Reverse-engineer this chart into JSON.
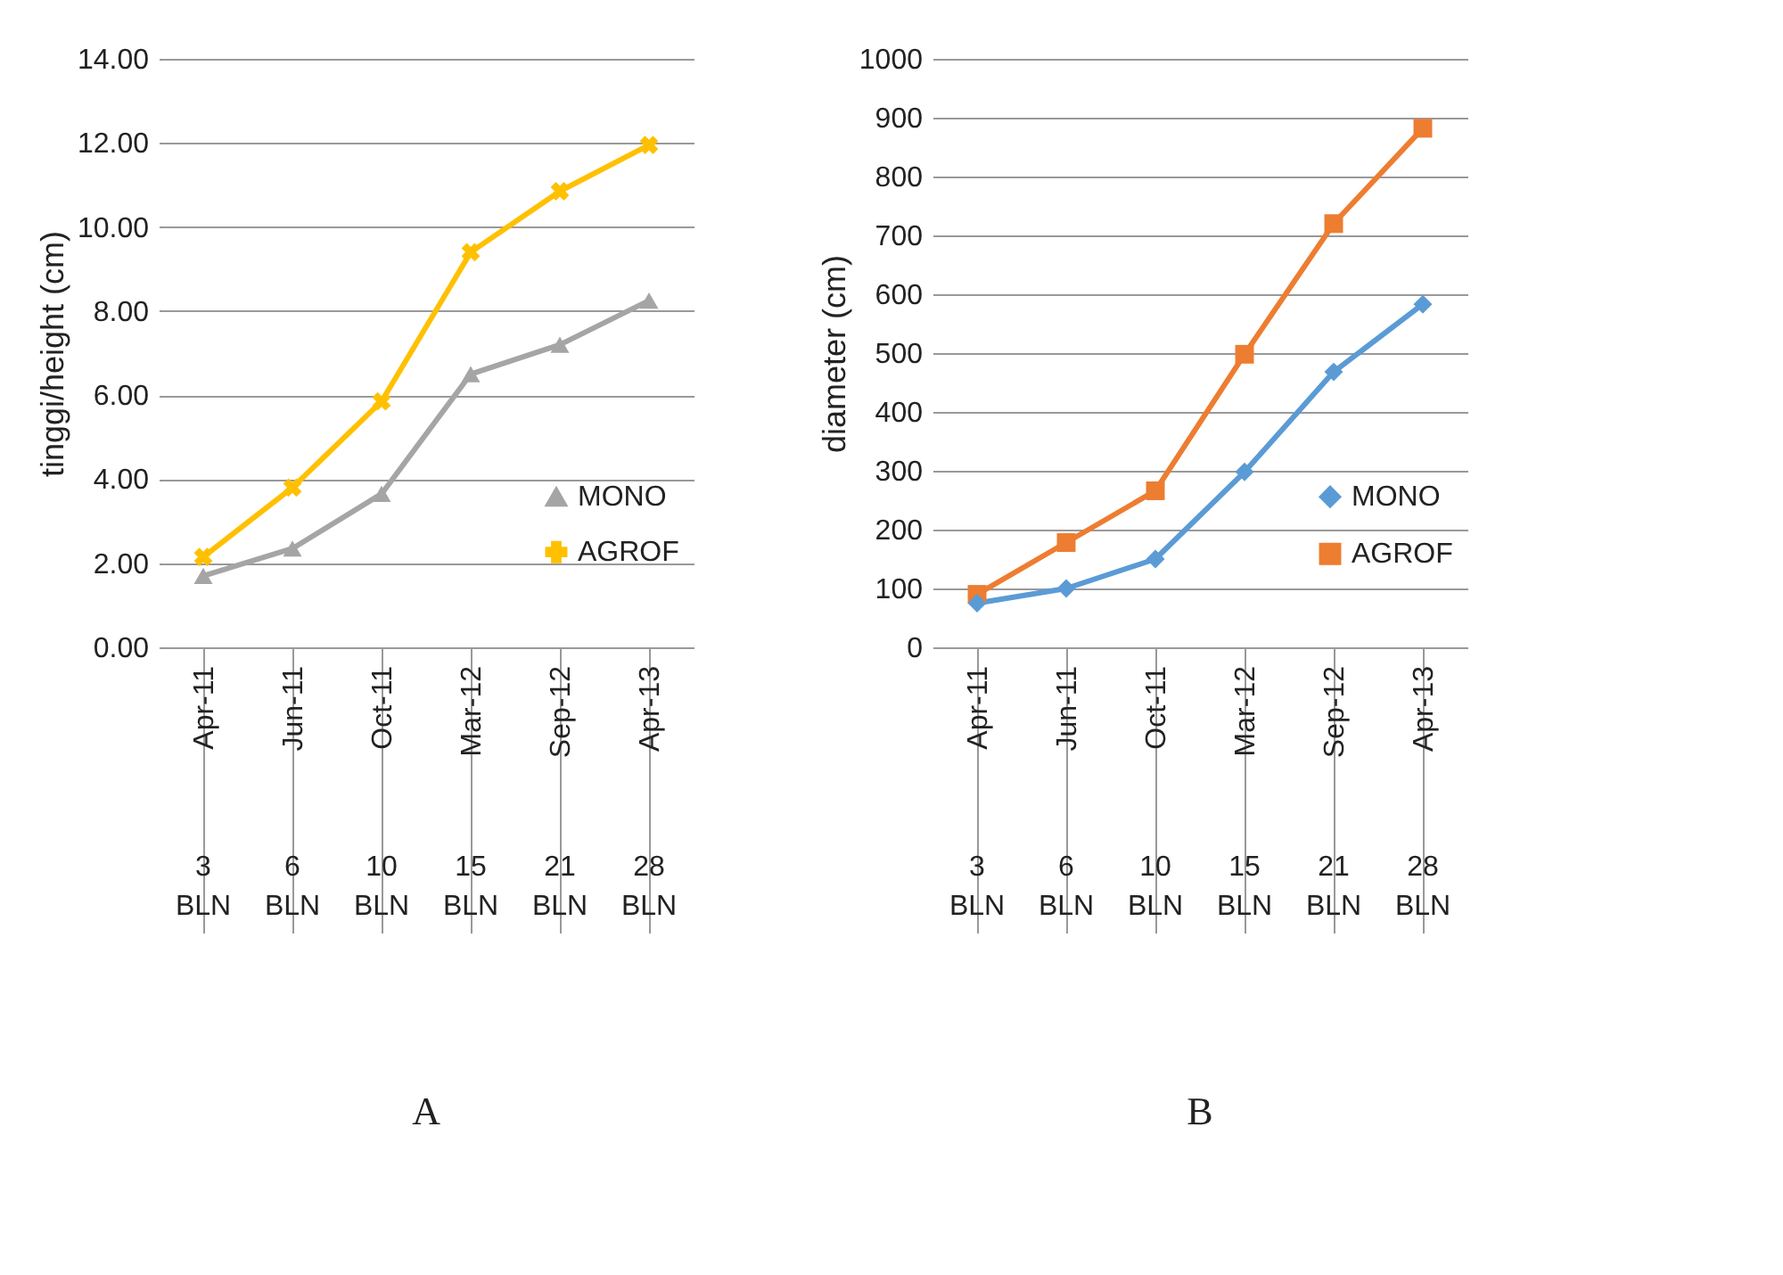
{
  "chart_data": [
    {
      "type": "line",
      "title": "A",
      "ylabel": "tinggi/height (cm)",
      "categories": [
        "Apr-11",
        "Jun-11",
        "Oct-11",
        "Mar-12",
        "Sep-12",
        "Apr-13"
      ],
      "annotations": [
        {
          "text": "3 BLN",
          "x": "Apr-11"
        },
        {
          "text": "6 BLN",
          "x": "Jun-11"
        },
        {
          "text": "10 BLN",
          "x": "Oct-11"
        },
        {
          "text": "15 BLN",
          "x": "Mar-12"
        },
        {
          "text": "21 BLN",
          "x": "Sep-12"
        },
        {
          "text": "28 BLN",
          "x": "Apr-13"
        }
      ],
      "series": [
        {
          "name": "MONO",
          "color": "#a5a5a5",
          "marker": "triangle",
          "values": [
            1.7,
            2.35,
            3.65,
            6.5,
            7.2,
            8.25
          ]
        },
        {
          "name": "AGROF",
          "color": "#ffc000",
          "marker": "cross",
          "values": [
            2.15,
            3.8,
            5.85,
            9.4,
            10.85,
            11.95
          ]
        }
      ],
      "ylim": [
        0,
        14
      ],
      "yticks": [
        {
          "value": 0,
          "label": "0.00"
        },
        {
          "value": 2,
          "label": "2.00"
        },
        {
          "value": 4,
          "label": "4.00"
        },
        {
          "value": 6,
          "label": "6.00"
        },
        {
          "value": 8,
          "label": "8.00"
        },
        {
          "value": 10,
          "label": "10.00"
        },
        {
          "value": 12,
          "label": "12.00"
        },
        {
          "value": 14,
          "label": "14.00"
        }
      ],
      "grid": "y",
      "legend": "right"
    },
    {
      "type": "line",
      "title": "B",
      "ylabel": "diameter  (cm)",
      "categories": [
        "Apr-11",
        "Jun-11",
        "Oct-11",
        "Mar-12",
        "Sep-12",
        "Apr-13"
      ],
      "annotations": [
        {
          "text": "3 BLN",
          "x": "Apr-11"
        },
        {
          "text": "6 BLN",
          "x": "Jun-11"
        },
        {
          "text": "10 BLN",
          "x": "Oct-11"
        },
        {
          "text": "15 BLN",
          "x": "Mar-12"
        },
        {
          "text": "21 BLN",
          "x": "Sep-12"
        },
        {
          "text": "28 BLN",
          "x": "Apr-13"
        }
      ],
      "series": [
        {
          "name": "MONO",
          "color": "#5b9bd5",
          "marker": "diamond",
          "values": [
            75,
            100,
            150,
            298,
            468,
            583
          ]
        },
        {
          "name": "AGROF",
          "color": "#ed7d31",
          "marker": "square",
          "values": [
            90,
            178,
            266,
            498,
            720,
            882
          ]
        }
      ],
      "ylim": [
        0,
        1000
      ],
      "yticks": [
        0,
        100,
        200,
        300,
        400,
        500,
        600,
        700,
        800,
        900,
        1000
      ],
      "grid": "y",
      "legend": "right"
    }
  ]
}
